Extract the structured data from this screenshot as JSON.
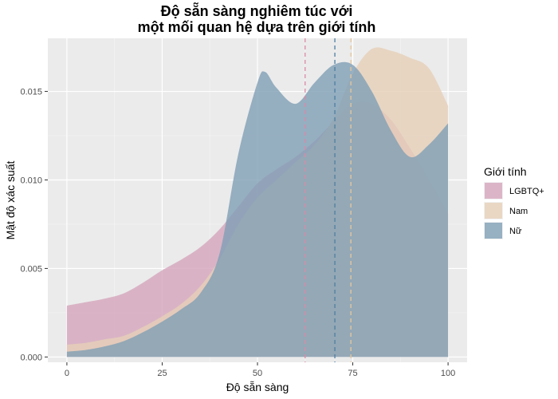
{
  "chart_data": {
    "type": "area",
    "title": "Độ sẵn sàng nghiêm túc với",
    "title_line2": "một mối quan hệ dựa trên giới tính",
    "xlabel": "Độ sẵn sàng",
    "ylabel": "Mật độ xác suất",
    "xlim": [
      -5,
      105
    ],
    "ylim": [
      -0.0003,
      0.018
    ],
    "x_ticks": [
      0,
      25,
      50,
      75,
      100
    ],
    "x_tick_labels": [
      "0",
      "25",
      "50",
      "75",
      "100"
    ],
    "y_ticks": [
      0,
      0.005,
      0.01,
      0.015
    ],
    "y_tick_labels": [
      "0.000",
      "0.005",
      "0.010",
      "0.015"
    ],
    "grid": true,
    "legend": {
      "title": "Giới tính",
      "position": "right"
    },
    "series": [
      {
        "name": "LGBTQ+",
        "color": "#d4a5bc",
        "line_color": "#d98aa8",
        "mean": 62.5,
        "x": [
          0,
          5,
          10,
          15,
          20,
          25,
          30,
          35,
          40,
          45,
          50,
          55,
          60,
          65,
          70,
          75,
          80,
          85,
          90,
          95,
          100
        ],
        "y": [
          0.0029,
          0.0031,
          0.0033,
          0.0036,
          0.0042,
          0.0049,
          0.0055,
          0.0062,
          0.0072,
          0.0085,
          0.0098,
          0.0106,
          0.0113,
          0.0122,
          0.0133,
          0.0143,
          0.0143,
          0.0134,
          0.0118,
          0.01,
          0.0081
        ]
      },
      {
        "name": "Nam",
        "color": "#e6d0b8",
        "line_color": "#e6c8a0",
        "mean": 74.5,
        "x": [
          0,
          5,
          10,
          15,
          20,
          25,
          30,
          35,
          40,
          45,
          50,
          55,
          60,
          65,
          70,
          75,
          80,
          85,
          90,
          95,
          100
        ],
        "y": [
          0.0007,
          0.0008,
          0.001,
          0.0012,
          0.0017,
          0.0023,
          0.003,
          0.004,
          0.0055,
          0.0075,
          0.009,
          0.01,
          0.011,
          0.012,
          0.0135,
          0.016,
          0.0174,
          0.0173,
          0.0169,
          0.0163,
          0.0142
        ]
      },
      {
        "name": "Nữ",
        "color": "#7f9fb5",
        "line_color": "#4f7f9f",
        "mean": 70.3,
        "x": [
          0,
          5,
          10,
          15,
          20,
          25,
          30,
          35,
          40,
          45,
          50,
          52,
          55,
          60,
          65,
          70,
          75,
          80,
          85,
          90,
          95,
          100
        ],
        "y": [
          0.0003,
          0.0004,
          0.0006,
          0.0009,
          0.0014,
          0.002,
          0.0027,
          0.0036,
          0.0058,
          0.0115,
          0.0155,
          0.0161,
          0.0152,
          0.0143,
          0.0155,
          0.0165,
          0.0165,
          0.015,
          0.0128,
          0.0113,
          0.012,
          0.0132
        ]
      }
    ]
  }
}
